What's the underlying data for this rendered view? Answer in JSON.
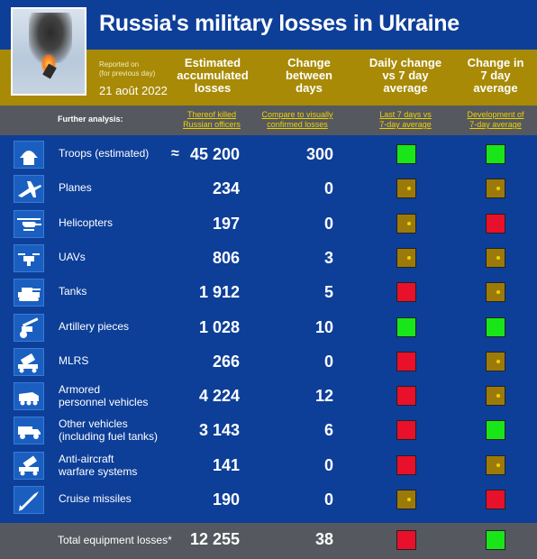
{
  "title": "Russia's military losses in Ukraine",
  "reported_on": "Reported on\n(for previous day)",
  "report_date": "21 août 2022",
  "headers": {
    "estimated": "Estimated\naccumulated\nlosses",
    "change": "Change\nbetween\ndays",
    "daily_vs_avg": "Daily change\nvs 7 day\naverage",
    "change_in_avg": "Change in\n7 day\naverage"
  },
  "further_analysis": "Further analysis:",
  "links": {
    "officers": "Thereof killed\nRussian officers",
    "confirmed": "Compare to visually\nconfirmed losses",
    "last7": "Last 7 days vs\n7-day average",
    "development": "Development of\n7-day average"
  },
  "colors": {
    "green": "#19e619",
    "red": "#e8102a",
    "gold": "#9c7a0a",
    "background": "#0d3f99",
    "gold_band": "#a88a06",
    "gray_band": "#55595f"
  },
  "rows": [
    {
      "label": "Troops (estimated)",
      "approx": "≈",
      "value": "45 200",
      "change": "300",
      "daily": "green",
      "avg": "green",
      "icon": "soldier-helmet-icon"
    },
    {
      "label": "Planes",
      "value": "234",
      "change": "0",
      "daily": "gold",
      "avg": "gold",
      "icon": "plane-icon"
    },
    {
      "label": "Helicopters",
      "value": "197",
      "change": "0",
      "daily": "gold",
      "avg": "red",
      "icon": "helicopter-icon"
    },
    {
      "label": "UAVs",
      "value": "806",
      "change": "3",
      "daily": "gold",
      "avg": "gold",
      "icon": "drone-icon"
    },
    {
      "label": "Tanks",
      "value": "1 912",
      "change": "5",
      "daily": "red",
      "avg": "gold",
      "icon": "tank-icon"
    },
    {
      "label": "Artillery pieces",
      "value": "1 028",
      "change": "10",
      "daily": "green",
      "avg": "green",
      "icon": "artillery-icon"
    },
    {
      "label": "MLRS",
      "value": "266",
      "change": "0",
      "daily": "red",
      "avg": "gold",
      "icon": "rocket-launcher-icon"
    },
    {
      "label": "Armored\npersonnel vehicles",
      "value": "4 224",
      "change": "12",
      "daily": "red",
      "avg": "gold",
      "icon": "apc-icon"
    },
    {
      "label": "Other vehicles\n(including fuel tanks)",
      "value": "3 143",
      "change": "6",
      "daily": "red",
      "avg": "green",
      "icon": "truck-icon"
    },
    {
      "label": "Anti-aircraft\nwarfare systems",
      "value": "141",
      "change": "0",
      "daily": "red",
      "avg": "gold",
      "icon": "anti-aircraft-icon"
    },
    {
      "label": "Cruise missiles",
      "value": "190",
      "change": "0",
      "daily": "gold",
      "avg": "red",
      "icon": "missile-icon"
    }
  ],
  "total": {
    "label": "Total equipment losses*",
    "value": "12 255",
    "change": "38",
    "daily": "red",
    "avg": "green"
  }
}
